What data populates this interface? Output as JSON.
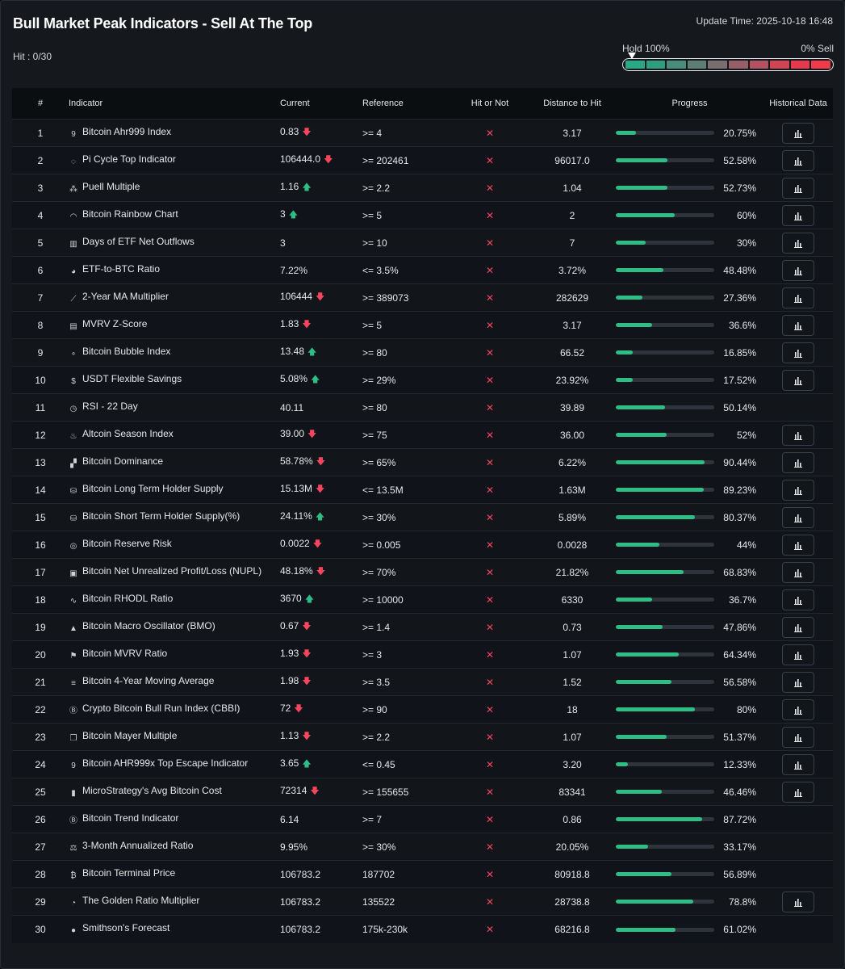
{
  "header": {
    "title": "Bull Market Peak Indicators - Sell At The Top",
    "hit": "Hit : 0/30",
    "update_time": "Update Time: 2025-10-18 16:48"
  },
  "gauge": {
    "left_label": "Hold 100%",
    "right_label": "0% Sell",
    "segments": [
      "#2aa785",
      "#2e9e80",
      "#4a8c7a",
      "#5f7d75",
      "#7a6e70",
      "#966068",
      "#b35260",
      "#d14454",
      "#e63a4c",
      "#f23a4d"
    ]
  },
  "table": {
    "headers": {
      "num": "#",
      "indicator": "Indicator",
      "current": "Current",
      "reference": "Reference",
      "hit": "Hit or Not",
      "distance": "Distance to Hit",
      "progress": "Progress",
      "history": "Historical Data"
    },
    "rows": [
      {
        "num": "1",
        "icon": "nine-box-icon",
        "name": "Bitcoin Ahr999 Index",
        "current": "0.83",
        "trend": "down",
        "reference": ">= 4",
        "hit": "✕",
        "distance": "3.17",
        "progress": 20.75,
        "progress_label": "20.75%",
        "history": true
      },
      {
        "num": "2",
        "icon": "pi-cycle-icon",
        "name": "Pi Cycle Top Indicator",
        "current": "106444.0",
        "trend": "down",
        "reference": ">= 202461",
        "hit": "✕",
        "distance": "96017.0",
        "progress": 52.58,
        "progress_label": "52.58%",
        "history": true
      },
      {
        "num": "3",
        "icon": "puell-icon",
        "name": "Puell Multiple",
        "current": "1.16",
        "trend": "up",
        "reference": ">= 2.2",
        "hit": "✕",
        "distance": "1.04",
        "progress": 52.73,
        "progress_label": "52.73%",
        "history": true
      },
      {
        "num": "4",
        "icon": "rainbow-icon",
        "name": "Bitcoin Rainbow Chart",
        "current": "3",
        "trend": "up",
        "reference": ">= 5",
        "hit": "✕",
        "distance": "2",
        "progress": 60,
        "progress_label": "60%",
        "history": true
      },
      {
        "num": "5",
        "icon": "bar-chart-icon",
        "name": "Days of ETF Net Outflows",
        "current": "3",
        "trend": "",
        "reference": ">= 10",
        "hit": "✕",
        "distance": "7",
        "progress": 30,
        "progress_label": "30%",
        "history": true
      },
      {
        "num": "6",
        "icon": "pie-icon",
        "name": "ETF-to-BTC Ratio",
        "current": "7.22%",
        "trend": "",
        "reference": "<= 3.5%",
        "hit": "✕",
        "distance": "3.72%",
        "progress": 48.48,
        "progress_label": "48.48%",
        "history": true
      },
      {
        "num": "7",
        "icon": "line-chart-icon",
        "name": "2-Year MA Multiplier",
        "current": "106444",
        "trend": "down",
        "reference": ">= 389073",
        "hit": "✕",
        "distance": "282629",
        "progress": 27.36,
        "progress_label": "27.36%",
        "history": true
      },
      {
        "num": "8",
        "icon": "clipboard-icon",
        "name": "MVRV Z-Score",
        "current": "1.83",
        "trend": "down",
        "reference": ">= 5",
        "hit": "✕",
        "distance": "3.17",
        "progress": 36.6,
        "progress_label": "36.6%",
        "history": true
      },
      {
        "num": "9",
        "icon": "bubble-icon",
        "name": "Bitcoin Bubble Index",
        "current": "13.48",
        "trend": "up",
        "reference": ">= 80",
        "hit": "✕",
        "distance": "66.52",
        "progress": 16.85,
        "progress_label": "16.85%",
        "history": true
      },
      {
        "num": "10",
        "icon": "dollar-icon",
        "name": "USDT Flexible Savings",
        "current": "5.08%",
        "trend": "up",
        "reference": ">= 29%",
        "hit": "✕",
        "distance": "23.92%",
        "progress": 17.52,
        "progress_label": "17.52%",
        "history": true
      },
      {
        "num": "11",
        "icon": "clock-icon",
        "name": "RSI - 22 Day",
        "current": "40.11",
        "trend": "",
        "reference": ">= 80",
        "hit": "✕",
        "distance": "39.89",
        "progress": 50.14,
        "progress_label": "50.14%",
        "history": false
      },
      {
        "num": "12",
        "icon": "flame-icon",
        "name": "Altcoin Season Index",
        "current": "39.00",
        "trend": "down",
        "reference": ">= 75",
        "hit": "✕",
        "distance": "36.00",
        "progress": 52,
        "progress_label": "52%",
        "history": true
      },
      {
        "num": "13",
        "icon": "signal-icon",
        "name": "Bitcoin Dominance",
        "current": "58.78%",
        "trend": "down",
        "reference": ">= 65%",
        "hit": "✕",
        "distance": "6.22%",
        "progress": 90.44,
        "progress_label": "90.44%",
        "history": true
      },
      {
        "num": "14",
        "icon": "database-icon",
        "name": "Bitcoin Long Term Holder Supply",
        "current": "15.13M",
        "trend": "down",
        "reference": "<= 13.5M",
        "hit": "✕",
        "distance": "1.63M",
        "progress": 89.23,
        "progress_label": "89.23%",
        "history": true
      },
      {
        "num": "15",
        "icon": "database-icon",
        "name": "Bitcoin Short Term Holder Supply(%)",
        "current": "24.11%",
        "trend": "up",
        "reference": ">= 30%",
        "hit": "✕",
        "distance": "5.89%",
        "progress": 80.37,
        "progress_label": "80.37%",
        "history": true
      },
      {
        "num": "16",
        "icon": "coins-icon",
        "name": "Bitcoin Reserve Risk",
        "current": "0.0022",
        "trend": "down",
        "reference": ">= 0.005",
        "hit": "✕",
        "distance": "0.0028",
        "progress": 44,
        "progress_label": "44%",
        "history": true
      },
      {
        "num": "17",
        "icon": "wallet-icon",
        "name": "Bitcoin Net Unrealized Profit/Loss (NUPL)",
        "current": "48.18%",
        "trend": "down",
        "reference": ">= 70%",
        "hit": "✕",
        "distance": "21.82%",
        "progress": 68.83,
        "progress_label": "68.83%",
        "history": true
      },
      {
        "num": "18",
        "icon": "pulse-icon",
        "name": "Bitcoin RHODL Ratio",
        "current": "3670",
        "trend": "up",
        "reference": ">= 10000",
        "hit": "✕",
        "distance": "6330",
        "progress": 36.7,
        "progress_label": "36.7%",
        "history": true
      },
      {
        "num": "19",
        "icon": "mountain-icon",
        "name": "Bitcoin Macro Oscillator (BMO)",
        "current": "0.67",
        "trend": "down",
        "reference": ">= 1.4",
        "hit": "✕",
        "distance": "0.73",
        "progress": 47.86,
        "progress_label": "47.86%",
        "history": true
      },
      {
        "num": "20",
        "icon": "flag-icon",
        "name": "Bitcoin MVRV Ratio",
        "current": "1.93",
        "trend": "down",
        "reference": ">= 3",
        "hit": "✕",
        "distance": "1.07",
        "progress": 64.34,
        "progress_label": "64.34%",
        "history": true
      },
      {
        "num": "21",
        "icon": "list-icon",
        "name": "Bitcoin 4-Year Moving Average",
        "current": "1.98",
        "trend": "down",
        "reference": ">= 3.5",
        "hit": "✕",
        "distance": "1.52",
        "progress": 56.58,
        "progress_label": "56.58%",
        "history": true
      },
      {
        "num": "22",
        "icon": "bitcoin-circle-icon",
        "name": "Crypto Bitcoin Bull Run Index (CBBI)",
        "current": "72",
        "trend": "down",
        "reference": ">= 90",
        "hit": "✕",
        "distance": "18",
        "progress": 80,
        "progress_label": "80%",
        "history": true
      },
      {
        "num": "23",
        "icon": "copy-icon",
        "name": "Bitcoin Mayer Multiple",
        "current": "1.13",
        "trend": "down",
        "reference": ">= 2.2",
        "hit": "✕",
        "distance": "1.07",
        "progress": 51.37,
        "progress_label": "51.37%",
        "history": true
      },
      {
        "num": "24",
        "icon": "nine-box-icon",
        "name": "Bitcoin AHR999x Top Escape Indicator",
        "current": "3.65",
        "trend": "up",
        "reference": "<= 0.45",
        "hit": "✕",
        "distance": "3.20",
        "progress": 12.33,
        "progress_label": "12.33%",
        "history": true
      },
      {
        "num": "25",
        "icon": "bars-small-icon",
        "name": "MicroStrategy's Avg Bitcoin Cost",
        "current": "72314",
        "trend": "down",
        "reference": ">= 155655",
        "hit": "✕",
        "distance": "83341",
        "progress": 46.46,
        "progress_label": "46.46%",
        "history": true
      },
      {
        "num": "26",
        "icon": "bitcoin-circle-icon",
        "name": "Bitcoin Trend Indicator",
        "current": "6.14",
        "trend": "",
        "reference": ">= 7",
        "hit": "✕",
        "distance": "0.86",
        "progress": 87.72,
        "progress_label": "87.72%",
        "history": false
      },
      {
        "num": "27",
        "icon": "scale-icon",
        "name": "3-Month Annualized Ratio",
        "current": "9.95%",
        "trend": "",
        "reference": ">= 30%",
        "hit": "✕",
        "distance": "20.05%",
        "progress": 33.17,
        "progress_label": "33.17%",
        "history": false
      },
      {
        "num": "28",
        "icon": "bitcoin-symbol-icon",
        "name": "Bitcoin Terminal Price",
        "current": "106783.2",
        "trend": "",
        "reference": "187702",
        "hit": "✕",
        "distance": "80918.8",
        "progress": 56.89,
        "progress_label": "56.89%",
        "history": false
      },
      {
        "num": "29",
        "icon": "gauge-icon",
        "name": "The Golden Ratio Multiplier",
        "current": "106783.2",
        "trend": "",
        "reference": "135522",
        "hit": "✕",
        "distance": "28738.8",
        "progress": 78.8,
        "progress_label": "78.8%",
        "history": true
      },
      {
        "num": "30",
        "icon": "bitcoin-filled-icon",
        "name": "Smithson's Forecast",
        "current": "106783.2",
        "trend": "",
        "reference": "175k-230k",
        "hit": "✕",
        "distance": "68216.8",
        "progress": 61.02,
        "progress_label": "61.02%",
        "history": false
      }
    ]
  }
}
